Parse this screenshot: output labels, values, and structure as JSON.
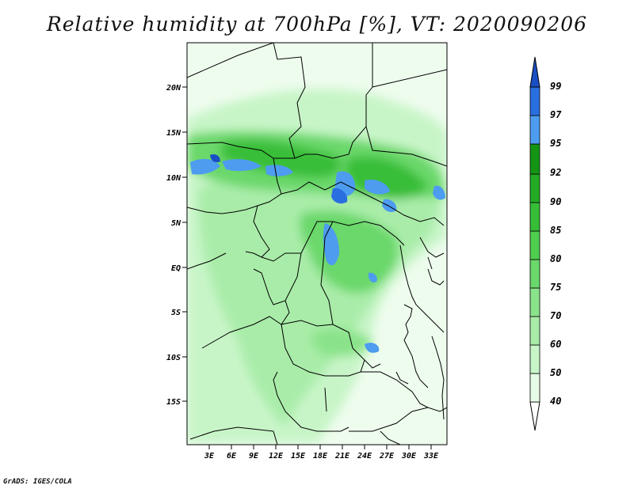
{
  "title": "Relative humidity at 700hPa [%], VT: 2020090206",
  "credit": "GrADS: IGES/COLA",
  "map": {
    "lat_labels": [
      "20N",
      "15N",
      "10N",
      "5N",
      "EQ",
      "5S",
      "10S",
      "15S"
    ],
    "lon_labels": [
      "3E",
      "6E",
      "9E",
      "12E",
      "15E",
      "18E",
      "21E",
      "24E",
      "27E",
      "30E",
      "33E"
    ]
  },
  "colorbar": {
    "levels": [
      "40",
      "50",
      "60",
      "70",
      "75",
      "80",
      "85",
      "90",
      "92",
      "95",
      "97",
      "99"
    ],
    "colors": [
      "#e5fbe5",
      "#c8f5c8",
      "#a9eca9",
      "#8ae38a",
      "#6ad86a",
      "#4fcd4f",
      "#37be37",
      "#24ab24",
      "#149414",
      "#4d9cf0",
      "#2a6fe0",
      "#1a4fc4"
    ]
  }
}
